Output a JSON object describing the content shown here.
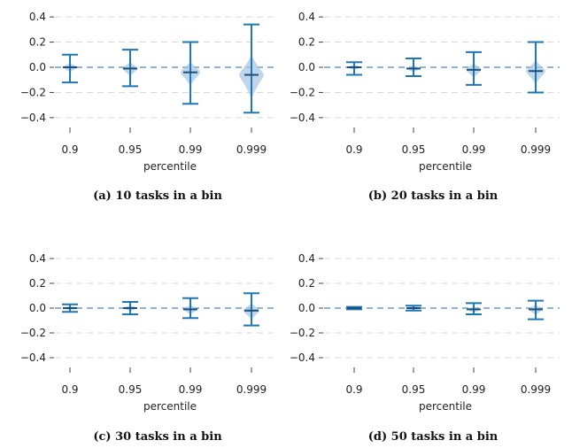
{
  "colors": {
    "line": "#1f77b4",
    "violin": "#a9c8e3",
    "grid": "#d9d9d9",
    "zero": "#8fb4d6"
  },
  "chart_data": [
    {
      "type": "violin",
      "caption": "(a) 10 tasks in a bin",
      "xlabel": "percentile",
      "ylabel": "",
      "ylim": [
        -0.45,
        0.45
      ],
      "yticks": [
        "0.4",
        "0.2",
        "0.0",
        "−0.2",
        "−0.4"
      ],
      "ytick_values": [
        0.4,
        0.2,
        0.0,
        -0.2,
        -0.4
      ],
      "categories": [
        "0.9",
        "0.95",
        "0.99",
        "0.999"
      ],
      "min": [
        -0.12,
        -0.15,
        -0.29,
        -0.36
      ],
      "max": [
        0.1,
        0.14,
        0.2,
        0.34
      ],
      "median": [
        0.0,
        -0.01,
        -0.04,
        -0.06
      ],
      "spread": [
        0.04,
        0.06,
        0.1,
        0.18
      ],
      "grid": true
    },
    {
      "type": "violin",
      "caption": "(b) 20 tasks in a bin",
      "xlabel": "percentile",
      "ylabel": "",
      "ylim": [
        -0.45,
        0.45
      ],
      "yticks": [
        "0.4",
        "0.2",
        "0.0",
        "−0.2",
        "−0.4"
      ],
      "ytick_values": [
        0.4,
        0.2,
        0.0,
        -0.2,
        -0.4
      ],
      "categories": [
        "0.9",
        "0.95",
        "0.99",
        "0.999"
      ],
      "min": [
        -0.06,
        -0.07,
        -0.14,
        -0.2
      ],
      "max": [
        0.04,
        0.07,
        0.12,
        0.2
      ],
      "median": [
        0.0,
        -0.01,
        -0.02,
        -0.03
      ],
      "spread": [
        0.02,
        0.03,
        0.06,
        0.1
      ],
      "grid": true
    },
    {
      "type": "violin",
      "caption": "(c) 30 tasks in a bin",
      "xlabel": "percentile",
      "ylabel": "",
      "ylim": [
        -0.45,
        0.45
      ],
      "yticks": [
        "0.4",
        "0.2",
        "0.0",
        "−0.2",
        "−0.4"
      ],
      "ytick_values": [
        0.4,
        0.2,
        0.0,
        -0.2,
        -0.4
      ],
      "categories": [
        "0.9",
        "0.95",
        "0.99",
        "0.999"
      ],
      "min": [
        -0.03,
        -0.05,
        -0.08,
        -0.14
      ],
      "max": [
        0.03,
        0.05,
        0.08,
        0.12
      ],
      "median": [
        0.0,
        0.0,
        -0.01,
        -0.02
      ],
      "spread": [
        0.015,
        0.025,
        0.04,
        0.07
      ],
      "grid": true
    },
    {
      "type": "violin",
      "caption": "(d) 50 tasks in a bin",
      "xlabel": "percentile",
      "ylabel": "",
      "ylim": [
        -0.45,
        0.45
      ],
      "yticks": [
        "0.4",
        "0.2",
        "0.0",
        "−0.2",
        "−0.4"
      ],
      "ytick_values": [
        0.4,
        0.2,
        0.0,
        -0.2,
        -0.4
      ],
      "categories": [
        "0.9",
        "0.95",
        "0.99",
        "0.999"
      ],
      "min": [
        -0.01,
        -0.02,
        -0.05,
        -0.09
      ],
      "max": [
        0.01,
        0.02,
        0.04,
        0.06
      ],
      "median": [
        0.0,
        0.0,
        -0.01,
        -0.01
      ],
      "spread": [
        0.008,
        0.012,
        0.025,
        0.045
      ],
      "grid": true
    }
  ]
}
